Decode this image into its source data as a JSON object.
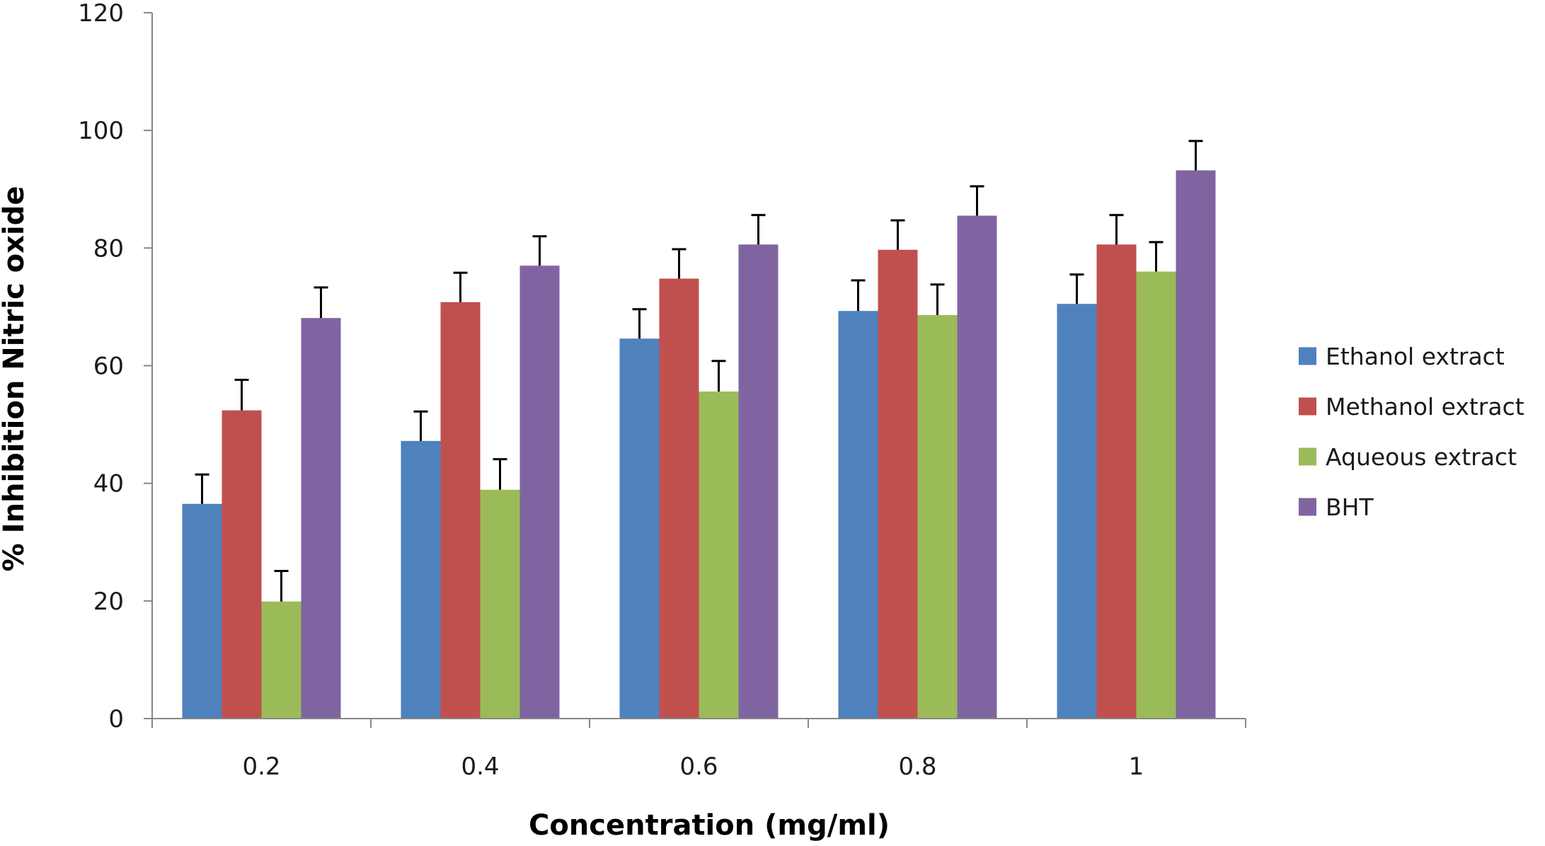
{
  "chart_data": {
    "type": "bar",
    "title": "",
    "xlabel": "Concentration (mg/ml)",
    "ylabel": "% Inhibition Nitric oxide",
    "ylim": [
      0,
      120
    ],
    "yticks": [
      "0",
      "20",
      "40",
      "60",
      "80",
      "100",
      "120"
    ],
    "categories": [
      "0.2",
      "0.4",
      "0.6",
      "0.8",
      "1"
    ],
    "grid": false,
    "legend_position": "right",
    "error_bars": true,
    "series": [
      {
        "name": "Ethanol extract",
        "color": "#4f81bd",
        "values": [
          36.5,
          47.2,
          64.6,
          69.3,
          70.5
        ],
        "errors": [
          5.0,
          5.0,
          5.0,
          5.2,
          5.0
        ]
      },
      {
        "name": "Methanol extract",
        "color": "#c0504d",
        "values": [
          52.4,
          70.8,
          74.8,
          79.7,
          80.6
        ],
        "errors": [
          5.2,
          5.0,
          5.0,
          5.0,
          5.0
        ]
      },
      {
        "name": "Aqueous extract",
        "color": "#9bbb59",
        "values": [
          19.9,
          38.9,
          55.6,
          68.6,
          76.0
        ],
        "errors": [
          5.2,
          5.2,
          5.2,
          5.2,
          5.0
        ]
      },
      {
        "name": "BHT",
        "color": "#8064a2",
        "values": [
          68.1,
          77.0,
          80.6,
          85.5,
          93.2
        ],
        "errors": [
          5.2,
          5.0,
          5.0,
          5.0,
          5.0
        ]
      }
    ]
  }
}
